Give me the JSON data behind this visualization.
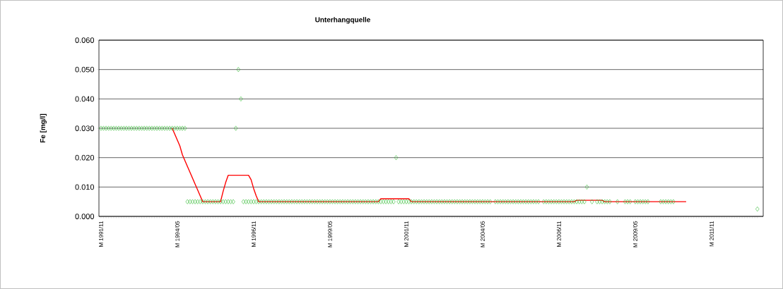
{
  "chart_data": {
    "type": "line",
    "title": "Unterhangquelle",
    "ylabel": "Fe [mg/l]",
    "categories": [
      "M 1991/11",
      null,
      null,
      null,
      null,
      null,
      null,
      null,
      null,
      null,
      null,
      null,
      null,
      null,
      null,
      null,
      null,
      null,
      null,
      null,
      null,
      null,
      null,
      null,
      null,
      null,
      null,
      null,
      null,
      null,
      "M 1994/05",
      null,
      null,
      null,
      null,
      null,
      null,
      null,
      null,
      null,
      null,
      null,
      null,
      null,
      null,
      null,
      null,
      null,
      null,
      null,
      null,
      null,
      null,
      null,
      null,
      null,
      null,
      null,
      null,
      null,
      "M 1996/11",
      null,
      null,
      null,
      null,
      null,
      null,
      null,
      null,
      null,
      null,
      null,
      null,
      null,
      null,
      null,
      null,
      null,
      null,
      null,
      null,
      null,
      null,
      null,
      null,
      null,
      null,
      null,
      null,
      null,
      "M 1999/05",
      null,
      null,
      null,
      null,
      null,
      null,
      null,
      null,
      null,
      null,
      null,
      null,
      null,
      null,
      null,
      null,
      null,
      null,
      null,
      null,
      null,
      null,
      null,
      null,
      null,
      null,
      null,
      null,
      null,
      "M 2001/11",
      null,
      null,
      null,
      null,
      null,
      null,
      null,
      null,
      null,
      null,
      null,
      null,
      null,
      null,
      null,
      null,
      null,
      null,
      null,
      null,
      null,
      null,
      null,
      null,
      null,
      null,
      null,
      null,
      null,
      "M 2004/05",
      null,
      null,
      null,
      null,
      null,
      null,
      null,
      null,
      null,
      null,
      null,
      null,
      null,
      null,
      null,
      null,
      null,
      null,
      null,
      null,
      null,
      null,
      null,
      null,
      null,
      null,
      null,
      null,
      null,
      "M 2006/11",
      null,
      null,
      null,
      null,
      null,
      null,
      null,
      null,
      null,
      null,
      null,
      null,
      null,
      null,
      null,
      null,
      null,
      null,
      null,
      null,
      null,
      null,
      null,
      null,
      null,
      null,
      null,
      null,
      null,
      "M 2009/05",
      null,
      null,
      null,
      null,
      null,
      null,
      null,
      null,
      null,
      null,
      null,
      null,
      null,
      null,
      null,
      null,
      null,
      null,
      null,
      null,
      null,
      null,
      null,
      null,
      null,
      null,
      null,
      null,
      null,
      "M 2011/11",
      null,
      null,
      null,
      null,
      null,
      null,
      null,
      null,
      null,
      null,
      null,
      null,
      null,
      null,
      null,
      null,
      null,
      null
    ],
    "ylim": [
      0,
      0.06
    ],
    "yticks": [
      {
        "value": 0,
        "label": "0.000"
      },
      {
        "value": 0.01,
        "label": "0.010"
      },
      {
        "value": 0.02,
        "label": "0.020"
      },
      {
        "value": 0.03,
        "label": "0.030"
      },
      {
        "value": 0.04,
        "label": "0.040"
      },
      {
        "value": 0.05,
        "label": "0.050"
      },
      {
        "value": 0.06,
        "label": "0.060"
      }
    ],
    "grid": "y",
    "series": [
      {
        "type": "line",
        "marker": "none",
        "color": "#ff0000",
        "values": [
          null,
          null,
          null,
          null,
          null,
          null,
          null,
          null,
          null,
          null,
          null,
          null,
          null,
          null,
          null,
          null,
          null,
          null,
          null,
          null,
          null,
          null,
          null,
          null,
          null,
          null,
          null,
          null,
          0.03,
          0.028,
          0.026,
          0.024,
          0.021,
          0.019,
          0.017,
          0.015,
          0.013,
          0.011,
          0.009,
          0.007,
          0.005,
          0.005,
          0.005,
          0.005,
          0.005,
          0.005,
          0.005,
          0.005,
          0.0085,
          0.0115,
          0.014,
          0.014,
          0.014,
          0.014,
          0.014,
          0.014,
          0.014,
          0.014,
          0.014,
          0.0125,
          0.0095,
          0.007,
          0.005,
          0.005,
          0.005,
          0.005,
          0.005,
          0.005,
          0.005,
          0.005,
          0.005,
          0.005,
          0.005,
          0.005,
          0.005,
          0.005,
          0.005,
          0.005,
          0.005,
          0.005,
          0.005,
          0.005,
          0.005,
          0.005,
          0.005,
          0.005,
          0.005,
          0.005,
          0.005,
          0.005,
          0.005,
          0.005,
          0.005,
          0.005,
          0.005,
          0.005,
          0.005,
          0.005,
          0.005,
          0.005,
          0.005,
          0.005,
          0.005,
          0.005,
          0.005,
          0.005,
          0.005,
          0.005,
          0.005,
          0.005,
          0.006,
          0.006,
          0.006,
          0.006,
          0.006,
          0.006,
          0.006,
          0.006,
          0.006,
          0.006,
          0.006,
          0.006,
          0.005,
          0.005,
          0.005,
          0.005,
          0.005,
          0.005,
          0.005,
          0.005,
          0.005,
          0.005,
          0.005,
          0.005,
          0.005,
          0.005,
          0.005,
          0.005,
          0.005,
          0.005,
          0.005,
          0.005,
          0.005,
          0.005,
          0.005,
          0.005,
          0.005,
          0.005,
          0.005,
          0.005,
          0.005,
          0.005,
          0.005,
          0.005,
          0.005,
          0.005,
          0.005,
          0.005,
          0.005,
          0.005,
          0.005,
          0.005,
          0.005,
          0.005,
          0.005,
          0.005,
          0.005,
          0.005,
          0.005,
          0.005,
          0.005,
          0.005,
          0.005,
          0.005,
          0.005,
          0.005,
          0.005,
          0.005,
          0.005,
          0.005,
          0.005,
          0.005,
          0.005,
          0.005,
          0.005,
          0.005,
          0.005,
          0.0055,
          0.0055,
          0.0055,
          0.0055,
          0.0055,
          0.0055,
          0.0055,
          0.0055,
          0.0055,
          0.0055,
          0.0055,
          0.005,
          0.005,
          0.005,
          0.005,
          0.005,
          0.005,
          0.005,
          0.005,
          0.005,
          0.005,
          0.005,
          0.005,
          0.005,
          0.005,
          0.005,
          0.005,
          0.005,
          0.005,
          0.005,
          0.005,
          0.005,
          0.005,
          0.005,
          0.005,
          0.005,
          0.005,
          0.005,
          0.005,
          0.005,
          0.005,
          0.005,
          0.005,
          0.005,
          null,
          null,
          null,
          null,
          null,
          null,
          null,
          null,
          null,
          null,
          null,
          null,
          null,
          null,
          null,
          null,
          null,
          null,
          null,
          null,
          null,
          null,
          null,
          null,
          null,
          null,
          null,
          null
        ]
      },
      {
        "type": "scatter",
        "marker": "diamond",
        "color": "#33bb33",
        "values": [
          0.03,
          0.03,
          0.03,
          0.03,
          0.03,
          0.03,
          0.03,
          0.03,
          0.03,
          0.03,
          0.03,
          0.03,
          0.03,
          0.03,
          0.03,
          0.03,
          0.03,
          0.03,
          0.03,
          0.03,
          0.03,
          0.03,
          0.03,
          0.03,
          0.03,
          0.03,
          0.03,
          0.03,
          0.03,
          0.03,
          0.03,
          0.03,
          0.03,
          0.03,
          0.005,
          0.005,
          0.005,
          0.005,
          0.005,
          0.005,
          0.005,
          0.005,
          0.005,
          0.005,
          0.005,
          0.005,
          0.005,
          0.005,
          0.005,
          0.005,
          0.005,
          0.005,
          0.005,
          0.03,
          0.05,
          0.04,
          0.005,
          0.005,
          0.005,
          0.005,
          0.005,
          0.005,
          0.005,
          0.005,
          0.005,
          0.005,
          0.005,
          0.005,
          0.005,
          0.005,
          0.005,
          0.005,
          0.005,
          0.005,
          0.005,
          0.005,
          0.005,
          0.005,
          0.005,
          0.005,
          0.005,
          0.005,
          0.005,
          0.005,
          0.005,
          0.005,
          0.005,
          0.005,
          0.005,
          0.005,
          0.005,
          0.005,
          0.005,
          0.005,
          0.005,
          0.005,
          0.005,
          0.005,
          0.005,
          0.005,
          0.005,
          0.005,
          0.005,
          0.005,
          0.005,
          0.005,
          0.005,
          0.005,
          0.005,
          0.005,
          0.005,
          0.005,
          0.005,
          0.005,
          0.005,
          0.005,
          0.02,
          0.005,
          0.005,
          0.005,
          0.005,
          0.005,
          0.005,
          0.005,
          0.005,
          0.005,
          0.005,
          0.005,
          0.005,
          0.005,
          0.005,
          0.005,
          0.005,
          0.005,
          0.005,
          0.005,
          0.005,
          0.005,
          0.005,
          0.005,
          0.005,
          0.005,
          0.005,
          0.005,
          0.005,
          0.005,
          0.005,
          0.005,
          0.005,
          0.005,
          0.005,
          0.005,
          0.005,
          0.005,
          null,
          0.005,
          0.005,
          0.005,
          0.005,
          0.005,
          0.005,
          0.005,
          0.005,
          0.005,
          0.005,
          0.005,
          0.005,
          0.005,
          0.005,
          0.005,
          0.005,
          0.005,
          0.005,
          null,
          0.005,
          0.005,
          0.005,
          0.005,
          0.005,
          0.005,
          0.005,
          0.005,
          0.005,
          0.005,
          0.005,
          0.005,
          0.005,
          0.005,
          0.005,
          0.005,
          0.005,
          0.01,
          null,
          0.005,
          null,
          0.005,
          0.005,
          0.005,
          0.005,
          0.005,
          0.005,
          null,
          null,
          0.005,
          null,
          null,
          0.005,
          0.005,
          0.005,
          null,
          0.005,
          0.005,
          0.005,
          0.005,
          0.005,
          0.005,
          null,
          null,
          null,
          null,
          0.005,
          0.005,
          0.005,
          0.005,
          0.005,
          0.005,
          null,
          null,
          null,
          null,
          null,
          null,
          null,
          null,
          null,
          null,
          null,
          null,
          null,
          null,
          null,
          null,
          null,
          null,
          null,
          null,
          null,
          null,
          null,
          null,
          null,
          null,
          null,
          null,
          null,
          null,
          null,
          null,
          0.0025
        ]
      }
    ]
  }
}
